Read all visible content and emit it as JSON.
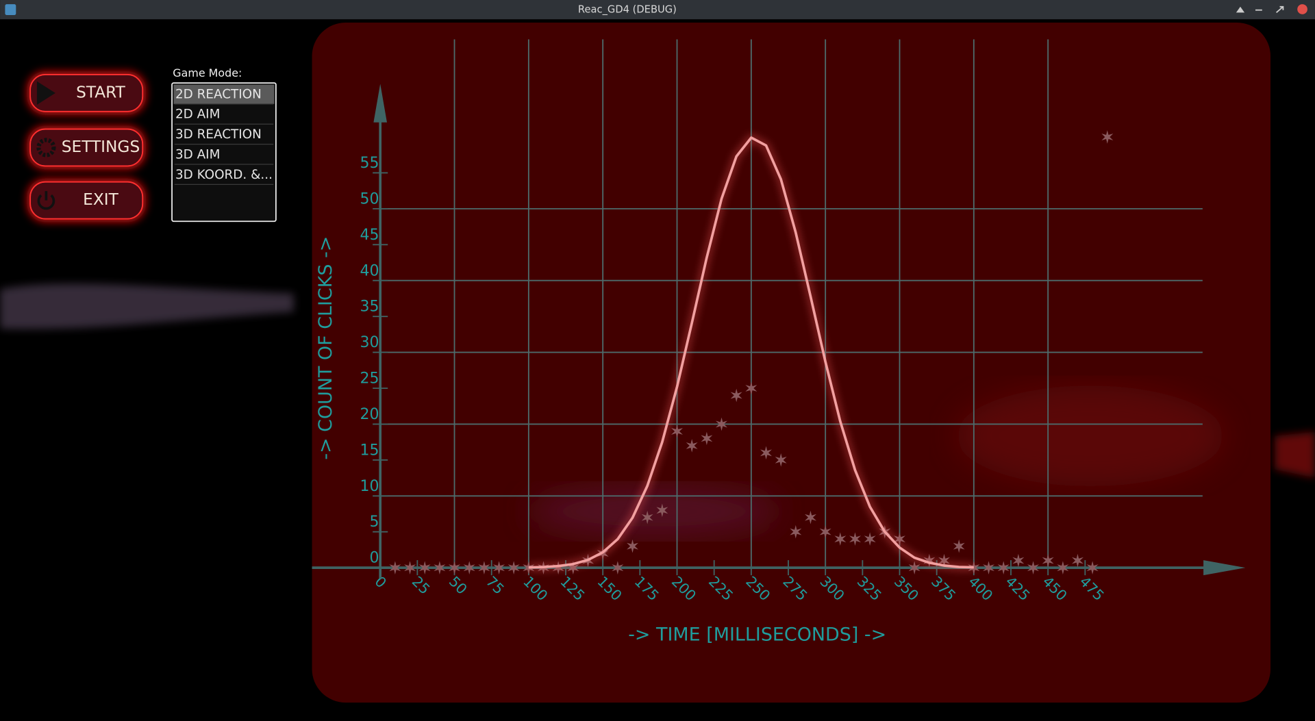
{
  "window": {
    "title": "Reac_GD4 (DEBUG)"
  },
  "menu": {
    "buttons": [
      "START",
      "SETTINGS",
      "EXIT"
    ]
  },
  "game_mode": {
    "label": "Game Mode:",
    "items": [
      "2D REACTION",
      "2D AIM",
      "3D REACTION",
      "3D AIM",
      "3D KOORD. &..."
    ],
    "selected": 0
  },
  "chart_data": {
    "type": "scatter",
    "x_label": "-> TIME [MILLISECONDS] ->",
    "y_label": "-> COUNT OF CLICKS ->",
    "xlim": [
      -46,
      583
    ],
    "ylim": [
      -1.5,
      67.4
    ],
    "xticks": [
      0,
      25,
      50,
      75,
      100,
      125,
      150,
      175,
      200,
      225,
      250,
      275,
      300,
      325,
      350,
      375,
      400,
      425,
      450,
      475
    ],
    "yticks": [
      0,
      5,
      10,
      15,
      20,
      25,
      30,
      35,
      40,
      45,
      50,
      55
    ],
    "grid": true,
    "axis_color": "#3f6464",
    "grid_color": "#4d6b6b",
    "label_color": "#1f9d9d",
    "series": [
      {
        "type": "scatter",
        "color": "#8a5a5e",
        "x": [
          10,
          20,
          30,
          40,
          50,
          60,
          70,
          80,
          90,
          100,
          110,
          120,
          130,
          140,
          150,
          160,
          170,
          180,
          190,
          200,
          210,
          220,
          230,
          240,
          250,
          260,
          270,
          280,
          290,
          300,
          310,
          320,
          330,
          340,
          350,
          360,
          370,
          380,
          390,
          400,
          410,
          420,
          430,
          440,
          450,
          460,
          470,
          480,
          490
        ],
        "values": [
          0,
          0,
          0,
          0,
          0,
          0,
          0,
          0,
          0,
          0,
          0,
          0,
          0,
          1,
          2,
          0,
          3,
          7,
          8,
          19,
          17,
          18,
          20,
          24,
          25,
          16,
          15,
          5,
          7,
          5,
          4,
          4,
          4,
          5,
          4,
          0,
          1,
          1,
          3,
          0,
          0,
          0,
          1,
          0,
          1,
          0,
          1,
          0,
          60
        ]
      },
      {
        "type": "line",
        "color": "#f2a0a0",
        "x": [
          100,
          110,
          120,
          130,
          140,
          150,
          160,
          170,
          180,
          190,
          200,
          210,
          220,
          230,
          240,
          250,
          260,
          270,
          280,
          290,
          300,
          310,
          320,
          330,
          340,
          350,
          360,
          370,
          380,
          390,
          400
        ],
        "values": [
          0.04,
          0.09,
          0.23,
          0.51,
          1.08,
          2.14,
          3.98,
          6.96,
          11.4,
          17.5,
          25.2,
          34.1,
          43.2,
          51.4,
          57.3,
          59.9,
          58.8,
          54.1,
          46.7,
          37.8,
          28.7,
          20.4,
          13.6,
          8.5,
          5.0,
          2.8,
          1.4,
          0.7,
          0.3,
          0.1,
          0.05
        ]
      }
    ]
  }
}
